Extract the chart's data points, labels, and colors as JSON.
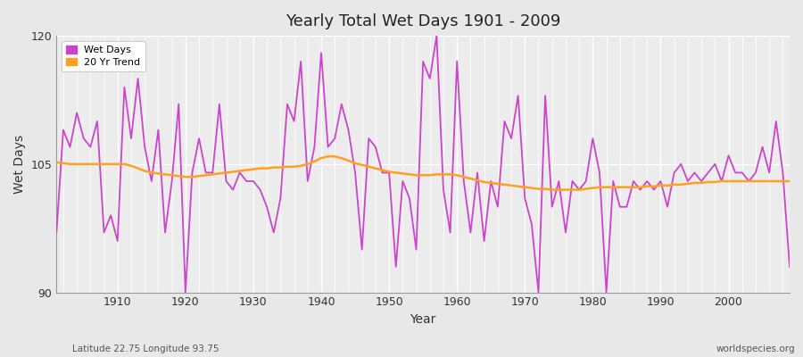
{
  "title": "Yearly Total Wet Days 1901 - 2009",
  "xlabel": "Year",
  "ylabel": "Wet Days",
  "footnote_left": "Latitude 22.75 Longitude 93.75",
  "footnote_right": "worldspecies.org",
  "ylim": [
    90,
    120
  ],
  "yticks": [
    90,
    105,
    120
  ],
  "xlim": [
    1901,
    2009
  ],
  "wet_days_color": "#CC44CC",
  "trend_color": "#FFA020",
  "bg_color": "#E8E8E8",
  "plot_bg_color": "#ECECEC",
  "grid_color": "#FFFFFF",
  "legend_bg": "#FFFFFF",
  "years": [
    1901,
    1902,
    1903,
    1904,
    1905,
    1906,
    1907,
    1908,
    1909,
    1910,
    1911,
    1912,
    1913,
    1914,
    1915,
    1916,
    1917,
    1918,
    1919,
    1920,
    1921,
    1922,
    1923,
    1924,
    1925,
    1926,
    1927,
    1928,
    1929,
    1930,
    1931,
    1932,
    1933,
    1934,
    1935,
    1936,
    1937,
    1938,
    1939,
    1940,
    1941,
    1942,
    1943,
    1944,
    1945,
    1946,
    1947,
    1948,
    1949,
    1950,
    1951,
    1952,
    1953,
    1954,
    1955,
    1956,
    1957,
    1958,
    1959,
    1960,
    1961,
    1962,
    1963,
    1964,
    1965,
    1966,
    1967,
    1968,
    1969,
    1970,
    1971,
    1972,
    1973,
    1974,
    1975,
    1976,
    1977,
    1978,
    1979,
    1980,
    1981,
    1982,
    1983,
    1984,
    1985,
    1986,
    1987,
    1988,
    1989,
    1990,
    1991,
    1992,
    1993,
    1994,
    1995,
    1996,
    1997,
    1998,
    1999,
    2000,
    2001,
    2002,
    2003,
    2004,
    2005,
    2006,
    2007,
    2008,
    2009
  ],
  "wet_days": [
    97,
    109,
    107,
    111,
    108,
    107,
    110,
    97,
    99,
    96,
    114,
    108,
    115,
    107,
    103,
    109,
    97,
    103,
    112,
    90,
    104,
    108,
    104,
    104,
    112,
    103,
    102,
    104,
    103,
    103,
    102,
    100,
    97,
    101,
    112,
    110,
    117,
    103,
    107,
    118,
    107,
    108,
    112,
    109,
    104,
    95,
    108,
    107,
    104,
    104,
    93,
    103,
    101,
    95,
    117,
    115,
    120,
    102,
    97,
    117,
    103,
    97,
    104,
    96,
    103,
    100,
    110,
    108,
    113,
    101,
    98,
    90,
    113,
    100,
    103,
    97,
    103,
    102,
    103,
    108,
    104,
    90,
    103,
    100,
    100,
    103,
    102,
    103,
    102,
    103,
    100,
    104,
    105,
    103,
    104,
    103,
    104,
    105,
    103,
    106,
    104,
    104,
    103,
    104,
    107,
    104,
    110,
    104,
    93
  ],
  "trend": [
    105.2,
    105.1,
    105.0,
    105.0,
    105.0,
    105.0,
    105.0,
    105.0,
    105.0,
    105.0,
    105.0,
    104.8,
    104.5,
    104.2,
    104.0,
    103.9,
    103.8,
    103.7,
    103.6,
    103.5,
    103.5,
    103.6,
    103.7,
    103.8,
    103.9,
    104.0,
    104.1,
    104.2,
    104.3,
    104.4,
    104.5,
    104.5,
    104.6,
    104.6,
    104.7,
    104.7,
    104.8,
    105.0,
    105.3,
    105.7,
    105.9,
    105.9,
    105.7,
    105.4,
    105.1,
    104.9,
    104.7,
    104.5,
    104.3,
    104.1,
    104.0,
    103.9,
    103.8,
    103.7,
    103.7,
    103.7,
    103.8,
    103.8,
    103.8,
    103.7,
    103.5,
    103.3,
    103.1,
    102.9,
    102.8,
    102.7,
    102.6,
    102.5,
    102.4,
    102.3,
    102.2,
    102.1,
    102.1,
    102.0,
    102.0,
    102.0,
    102.0,
    102.0,
    102.1,
    102.2,
    102.3,
    102.3,
    102.3,
    102.3,
    102.3,
    102.3,
    102.3,
    102.4,
    102.4,
    102.5,
    102.5,
    102.6,
    102.6,
    102.7,
    102.8,
    102.8,
    102.9,
    102.9,
    103.0,
    103.0,
    103.0,
    103.0,
    103.0,
    103.0,
    103.0,
    103.0,
    103.0,
    103.0,
    103.0
  ]
}
